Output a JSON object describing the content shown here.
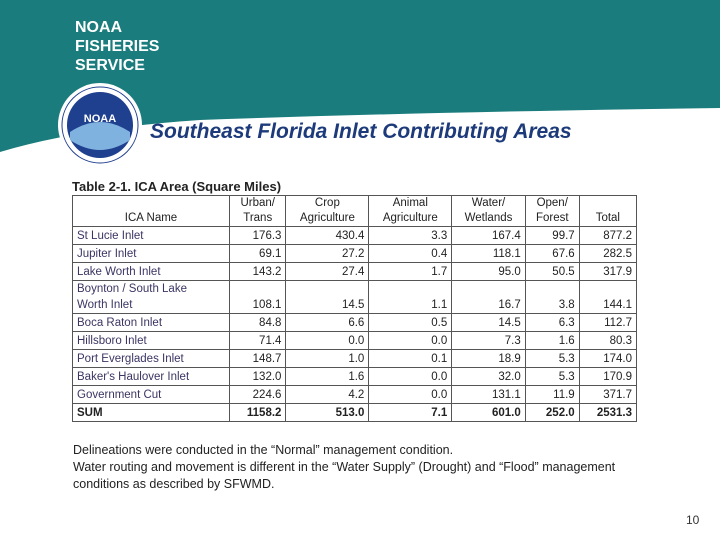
{
  "header": {
    "logo_lines": [
      "NOAA",
      "FISHERIES",
      "SERVICE"
    ],
    "emblem_text": "NOAA",
    "title": "Southeast Florida Inlet Contributing Areas"
  },
  "table": {
    "caption": "Table 2-1. ICA Area (Square Miles)",
    "columns": [
      [
        "ICA Name"
      ],
      [
        "Urban/",
        "Trans"
      ],
      [
        "Crop",
        "Agriculture"
      ],
      [
        "Animal",
        "Agriculture"
      ],
      [
        "Water/",
        "Wetlands"
      ],
      [
        "Open/",
        "Forest"
      ],
      [
        "Total"
      ]
    ],
    "rows": [
      [
        "St Lucie Inlet",
        "176.3",
        "430.4",
        "3.3",
        "167.4",
        "99.7",
        "877.2"
      ],
      [
        "Jupiter Inlet",
        "69.1",
        "27.2",
        "0.4",
        "118.1",
        "67.6",
        "282.5"
      ],
      [
        "Lake Worth Inlet",
        "143.2",
        "27.4",
        "1.7",
        "95.0",
        "50.5",
        "317.9"
      ],
      [
        "Boynton / South Lake\nWorth Inlet",
        "108.1",
        "14.5",
        "1.1",
        "16.7",
        "3.8",
        "144.1"
      ],
      [
        "Boca Raton Inlet",
        "84.8",
        "6.6",
        "0.5",
        "14.5",
        "6.3",
        "112.7"
      ],
      [
        "Hillsboro Inlet",
        "71.4",
        "0.0",
        "0.0",
        "7.3",
        "1.6",
        "80.3"
      ],
      [
        "Port Everglades Inlet",
        "148.7",
        "1.0",
        "0.1",
        "18.9",
        "5.3",
        "174.0"
      ],
      [
        "Baker's Haulover Inlet",
        "132.0",
        "1.6",
        "0.0",
        "32.0",
        "5.3",
        "170.9"
      ],
      [
        "Government Cut",
        "224.6",
        "4.2",
        "0.0",
        "131.1",
        "11.9",
        "371.7"
      ],
      [
        "SUM",
        "1158.2",
        "513.0",
        "7.1",
        "601.0",
        "252.0",
        "2531.3"
      ]
    ]
  },
  "notes": [
    "Delineations were conducted in the “Normal” management condition.",
    "Water routing and movement is different in the “Water Supply” (Drought) and “Flood” management conditions as described by SFWMD."
  ],
  "page_number": "10"
}
